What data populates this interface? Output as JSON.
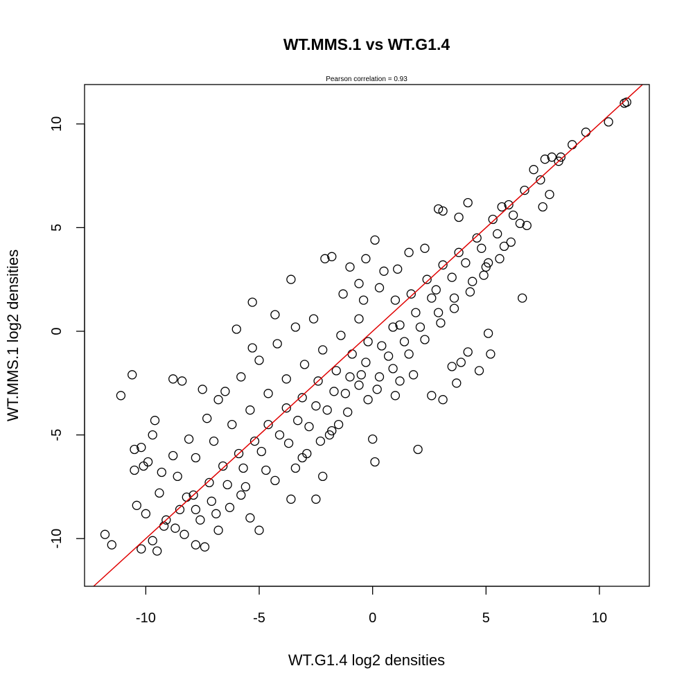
{
  "chart_data": {
    "type": "scatter",
    "title": "WT.MMS.1 vs WT.G1.4",
    "subtitle": "Pearson correlation =  0.93",
    "xlabel": "WT.G1.4 log2 densities",
    "ylabel": "WT.MMS.1 log2 densities",
    "xlim": [
      -12.7,
      12.2
    ],
    "ylim": [
      -12.3,
      11.9
    ],
    "x_ticks": [
      -10,
      -5,
      0,
      5,
      10
    ],
    "y_ticks": [
      -10,
      -5,
      0,
      5,
      10
    ],
    "x_tick_labels": [
      "-10",
      "-5",
      "0",
      "5",
      "10"
    ],
    "y_tick_labels": [
      "-10",
      "-5",
      "0",
      "5",
      "10"
    ],
    "grid": false,
    "marker": "open circle",
    "marker_color": "#000000",
    "fit_line": {
      "intercept": 0,
      "slope": 1,
      "color": "#e00000"
    },
    "correlation": 0.93,
    "points": [
      [
        11.1,
        11.0
      ],
      [
        11.2,
        11.05
      ],
      [
        10.4,
        10.1
      ],
      [
        9.4,
        9.6
      ],
      [
        8.8,
        9.0
      ],
      [
        8.3,
        8.4
      ],
      [
        8.2,
        8.2
      ],
      [
        7.9,
        8.4
      ],
      [
        7.6,
        8.3
      ],
      [
        7.1,
        7.8
      ],
      [
        2.9,
        5.9
      ],
      [
        3.1,
        5.8
      ],
      [
        4.2,
        6.2
      ],
      [
        3.8,
        5.5
      ],
      [
        5.7,
        6.0
      ],
      [
        6.6,
        1.6
      ],
      [
        6.5,
        5.2
      ],
      [
        5.0,
        3.1
      ],
      [
        -1.8,
        3.6
      ],
      [
        -2.1,
        3.5
      ],
      [
        -1.0,
        3.1
      ],
      [
        -0.3,
        3.5
      ],
      [
        0.1,
        4.4
      ],
      [
        -3.6,
        2.5
      ],
      [
        -5.3,
        1.4
      ],
      [
        -4.3,
        0.8
      ],
      [
        -5.3,
        -0.8
      ],
      [
        -6.0,
        0.1
      ],
      [
        -10.6,
        -2.1
      ],
      [
        -11.1,
        -3.1
      ],
      [
        -8.8,
        -2.3
      ],
      [
        -8.4,
        -2.4
      ],
      [
        -7.5,
        -2.8
      ],
      [
        -9.6,
        -4.3
      ],
      [
        -9.7,
        -5.0
      ],
      [
        -9.9,
        -6.3
      ],
      [
        -10.5,
        -5.7
      ],
      [
        -10.2,
        -5.6
      ],
      [
        -10.1,
        -6.5
      ],
      [
        -10.5,
        -6.7
      ],
      [
        -10.4,
        -8.4
      ],
      [
        -10.0,
        -8.8
      ],
      [
        -11.8,
        -9.8
      ],
      [
        -11.5,
        -10.3
      ],
      [
        -10.2,
        -10.5
      ],
      [
        -9.7,
        -10.1
      ],
      [
        -9.5,
        -10.6
      ],
      [
        -9.2,
        -9.4
      ],
      [
        -8.7,
        -9.5
      ],
      [
        -8.3,
        -9.8
      ],
      [
        -7.8,
        -10.3
      ],
      [
        -7.4,
        -10.4
      ],
      [
        -6.8,
        -9.6
      ],
      [
        -5.4,
        -9.0
      ],
      [
        -5.0,
        -9.6
      ],
      [
        -3.6,
        -8.1
      ],
      [
        -2.5,
        -8.1
      ],
      [
        -2.2,
        -7.0
      ],
      [
        0.0,
        -5.2
      ],
      [
        0.1,
        -6.3
      ],
      [
        2.0,
        -5.7
      ],
      [
        3.1,
        -3.3
      ],
      [
        3.5,
        -1.7
      ],
      [
        3.9,
        -1.5
      ],
      [
        4.7,
        -1.9
      ],
      [
        5.1,
        -0.1
      ],
      [
        5.2,
        -1.1
      ],
      [
        4.2,
        -1.0
      ],
      [
        3.7,
        -2.5
      ],
      [
        2.6,
        -3.1
      ],
      [
        1.8,
        -2.1
      ],
      [
        1.2,
        -2.4
      ],
      [
        1.0,
        -3.1
      ],
      [
        0.3,
        -2.2
      ],
      [
        -0.2,
        -3.3
      ],
      [
        -0.6,
        -2.6
      ],
      [
        -1.5,
        -4.5
      ],
      [
        -1.8,
        -4.8
      ],
      [
        -2.3,
        -5.3
      ],
      [
        -3.1,
        -6.1
      ],
      [
        -0.4,
        1.5
      ],
      [
        0.5,
        2.9
      ],
      [
        1.1,
        3.0
      ],
      [
        1.6,
        3.8
      ],
      [
        2.3,
        4.0
      ],
      [
        0.9,
        0.2
      ],
      [
        -0.2,
        -0.5
      ],
      [
        -0.9,
        -1.1
      ],
      [
        -1.6,
        -1.9
      ],
      [
        -2.4,
        -2.4
      ],
      [
        -3.1,
        -3.2
      ],
      [
        -3.8,
        -3.7
      ],
      [
        -4.6,
        -4.5
      ],
      [
        -5.2,
        -5.3
      ],
      [
        -5.9,
        -5.9
      ],
      [
        -6.6,
        -6.5
      ],
      [
        -7.2,
        -7.3
      ],
      [
        -7.9,
        -7.9
      ],
      [
        -8.5,
        -8.6
      ],
      [
        -9.1,
        -9.1
      ],
      [
        1.7,
        1.8
      ],
      [
        2.4,
        2.5
      ],
      [
        3.1,
        3.2
      ],
      [
        3.8,
        3.8
      ],
      [
        4.6,
        4.5
      ],
      [
        5.3,
        5.4
      ],
      [
        6.0,
        6.1
      ],
      [
        6.7,
        6.8
      ],
      [
        7.4,
        7.3
      ],
      [
        2.8,
        2.0
      ],
      [
        3.5,
        2.6
      ],
      [
        4.1,
        3.3
      ],
      [
        4.8,
        4.0
      ],
      [
        5.5,
        4.7
      ],
      [
        6.2,
        5.6
      ],
      [
        1.2,
        0.3
      ],
      [
        1.9,
        0.9
      ],
      [
        2.6,
        1.6
      ],
      [
        0.4,
        -0.7
      ],
      [
        -0.3,
        -1.5
      ],
      [
        -1.0,
        -2.2
      ],
      [
        -1.7,
        -2.9
      ],
      [
        -2.5,
        -3.6
      ],
      [
        -3.3,
        -4.3
      ],
      [
        -4.1,
        -5.0
      ],
      [
        -4.9,
        -5.8
      ],
      [
        -5.7,
        -6.6
      ],
      [
        -6.4,
        -7.4
      ],
      [
        -7.1,
        -8.2
      ],
      [
        -7.8,
        -8.6
      ],
      [
        -0.6,
        0.6
      ],
      [
        -1.4,
        -0.2
      ],
      [
        -2.2,
        -0.9
      ],
      [
        -3.0,
        -1.6
      ],
      [
        -3.8,
        -2.3
      ],
      [
        -4.6,
        -3.0
      ],
      [
        -5.4,
        -3.8
      ],
      [
        -6.2,
        -4.5
      ],
      [
        -7.0,
        -5.3
      ],
      [
        -7.8,
        -6.1
      ],
      [
        -8.6,
        -7.0
      ],
      [
        -9.4,
        -7.8
      ],
      [
        -6.8,
        -3.3
      ],
      [
        -7.3,
        -4.2
      ],
      [
        -8.1,
        -5.2
      ],
      [
        -8.8,
        -6.0
      ],
      [
        -9.3,
        -6.8
      ],
      [
        -8.2,
        -8.0
      ],
      [
        -6.3,
        -8.5
      ],
      [
        -5.8,
        -7.9
      ],
      [
        -4.3,
        -7.2
      ],
      [
        -3.4,
        -6.6
      ],
      [
        -2.9,
        -5.9
      ],
      [
        -1.9,
        -5.0
      ],
      [
        -1.1,
        -3.9
      ],
      [
        0.2,
        -2.8
      ],
      [
        0.9,
        -1.8
      ],
      [
        1.6,
        -1.1
      ],
      [
        2.3,
        -0.4
      ],
      [
        3.0,
        0.4
      ],
      [
        3.6,
        1.1
      ],
      [
        4.3,
        1.9
      ],
      [
        4.9,
        2.7
      ],
      [
        5.6,
        3.5
      ],
      [
        6.1,
        4.3
      ],
      [
        6.8,
        5.1
      ],
      [
        7.5,
        6.0
      ],
      [
        7.8,
        6.6
      ],
      [
        -2.6,
        0.6
      ],
      [
        -3.4,
        0.2
      ],
      [
        -4.2,
        -0.6
      ],
      [
        -5.0,
        -1.4
      ],
      [
        -5.8,
        -2.2
      ],
      [
        -6.5,
        -2.9
      ],
      [
        -1.3,
        1.8
      ],
      [
        -0.6,
        2.3
      ],
      [
        0.3,
        2.1
      ],
      [
        1.0,
        1.5
      ],
      [
        -4.7,
        -6.7
      ],
      [
        -5.6,
        -7.5
      ],
      [
        -6.9,
        -8.8
      ],
      [
        -7.6,
        -9.1
      ],
      [
        -3.7,
        -5.4
      ],
      [
        -2.8,
        -4.6
      ],
      [
        -2.0,
        -3.8
      ],
      [
        -1.2,
        -3.0
      ],
      [
        -0.5,
        -2.1
      ],
      [
        0.7,
        -1.2
      ],
      [
        1.4,
        -0.5
      ],
      [
        2.1,
        0.2
      ],
      [
        2.9,
        0.9
      ],
      [
        3.6,
        1.6
      ],
      [
        4.4,
        2.4
      ],
      [
        5.1,
        3.3
      ],
      [
        5.8,
        4.1
      ]
    ]
  }
}
